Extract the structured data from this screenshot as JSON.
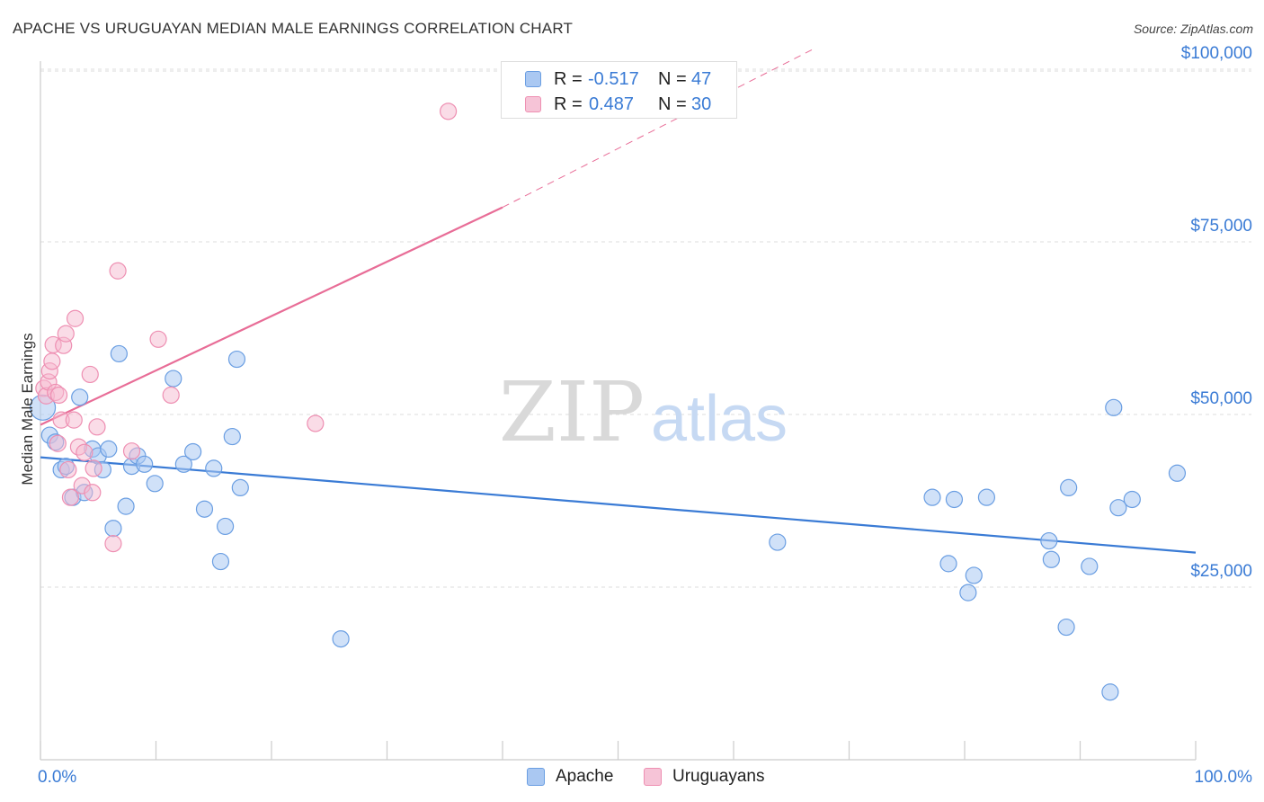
{
  "title": "APACHE VS URUGUAYAN MEDIAN MALE EARNINGS CORRELATION CHART",
  "source": "Source: ZipAtlas.com",
  "watermark": {
    "zip": "ZIP",
    "atlas": "atlas"
  },
  "colors": {
    "blue": "#3a7bd5",
    "blue_fill": "#aac8f2",
    "blue_stroke": "#6a9ee2",
    "pink": "#e86d97",
    "pink_fill": "#f6b9cf",
    "pink_stroke": "#ee8fb2",
    "grid": "#dddddd",
    "axis_label": "#3a7bd5"
  },
  "legend": {
    "apache": {
      "r_label": "R =",
      "r_value": "-0.517",
      "n_label": "N =",
      "n_value": "47"
    },
    "uruguayans": {
      "r_label": "R =",
      "r_value": "0.487",
      "n_label": "N =",
      "n_value": "30"
    }
  },
  "bottom_legend": {
    "apache": "Apache",
    "uruguayans": "Uruguayans"
  },
  "chart_data": {
    "type": "scatter",
    "title": "APACHE VS URUGUAYAN MEDIAN MALE EARNINGS CORRELATION CHART",
    "xlabel": "",
    "ylabel": "Median Male Earnings",
    "xlim": [
      0,
      100
    ],
    "ylim": [
      0,
      105000
    ],
    "x_tick_labels": [
      "0.0%",
      "100.0%"
    ],
    "y_ticks": [
      {
        "value": 25000,
        "label": "$25,000"
      },
      {
        "value": 50000,
        "label": "$50,000"
      },
      {
        "value": 75000,
        "label": "$75,000"
      },
      {
        "value": 100000,
        "label": "$100,000"
      }
    ],
    "series": [
      {
        "name": "Apache",
        "color": "blue",
        "points": [
          [
            0.2,
            51000
          ],
          [
            0.8,
            47000
          ],
          [
            1.3,
            46000
          ],
          [
            1.8,
            42000
          ],
          [
            2.2,
            42500
          ],
          [
            2.8,
            38000
          ],
          [
            3.4,
            52500
          ],
          [
            3.8,
            38700
          ],
          [
            4.5,
            45000
          ],
          [
            5.0,
            44000
          ],
          [
            5.4,
            42000
          ],
          [
            5.9,
            45000
          ],
          [
            6.3,
            33500
          ],
          [
            6.8,
            58800
          ],
          [
            7.4,
            36700
          ],
          [
            7.9,
            42500
          ],
          [
            8.4,
            44000
          ],
          [
            9.0,
            42800
          ],
          [
            9.9,
            40000
          ],
          [
            11.5,
            55200
          ],
          [
            12.4,
            42800
          ],
          [
            13.2,
            44600
          ],
          [
            14.2,
            36300
          ],
          [
            15.0,
            42200
          ],
          [
            15.6,
            28700
          ],
          [
            16.0,
            33800
          ],
          [
            16.6,
            46800
          ],
          [
            17.0,
            58000
          ],
          [
            17.3,
            39400
          ],
          [
            26.0,
            17500
          ],
          [
            63.8,
            31500
          ],
          [
            77.2,
            38000
          ],
          [
            78.6,
            28400
          ],
          [
            79.1,
            37700
          ],
          [
            80.3,
            24200
          ],
          [
            80.8,
            26700
          ],
          [
            81.9,
            38000
          ],
          [
            87.3,
            31700
          ],
          [
            87.5,
            29000
          ],
          [
            88.8,
            19200
          ],
          [
            89.0,
            39400
          ],
          [
            90.8,
            28000
          ],
          [
            92.6,
            9800
          ],
          [
            92.9,
            51000
          ],
          [
            93.3,
            36500
          ],
          [
            94.5,
            37700
          ],
          [
            98.4,
            41500
          ]
        ]
      },
      {
        "name": "Uruguayans",
        "color": "pink",
        "points": [
          [
            0.3,
            53800
          ],
          [
            0.5,
            52700
          ],
          [
            0.7,
            54700
          ],
          [
            0.8,
            56300
          ],
          [
            1.0,
            57700
          ],
          [
            1.1,
            60100
          ],
          [
            1.3,
            53200
          ],
          [
            1.5,
            45800
          ],
          [
            1.6,
            52800
          ],
          [
            1.8,
            49200
          ],
          [
            2.0,
            60000
          ],
          [
            2.2,
            61700
          ],
          [
            2.4,
            42000
          ],
          [
            2.6,
            38000
          ],
          [
            2.9,
            49200
          ],
          [
            3.0,
            63900
          ],
          [
            3.3,
            45300
          ],
          [
            3.6,
            39700
          ],
          [
            3.8,
            44500
          ],
          [
            4.3,
            55800
          ],
          [
            4.5,
            38700
          ],
          [
            4.6,
            42200
          ],
          [
            4.9,
            48200
          ],
          [
            6.3,
            31300
          ],
          [
            6.7,
            70800
          ],
          [
            7.9,
            44700
          ],
          [
            10.2,
            60900
          ],
          [
            11.3,
            52800
          ],
          [
            23.8,
            48700
          ],
          [
            35.3,
            93900
          ]
        ]
      }
    ],
    "trend_lines": [
      {
        "series": "Apache",
        "x_start": 0,
        "y_start": 43800,
        "x_end": 100,
        "y_end": 30000,
        "style": "solid"
      },
      {
        "series": "Uruguayans",
        "x_start": 0,
        "y_start": 48500,
        "x_end": 40,
        "y_end": 80000,
        "style": "solid"
      },
      {
        "series": "Uruguayans",
        "x_start": 40,
        "y_start": 80000,
        "x_end": 67,
        "y_end": 103000,
        "style": "dashed"
      }
    ]
  }
}
